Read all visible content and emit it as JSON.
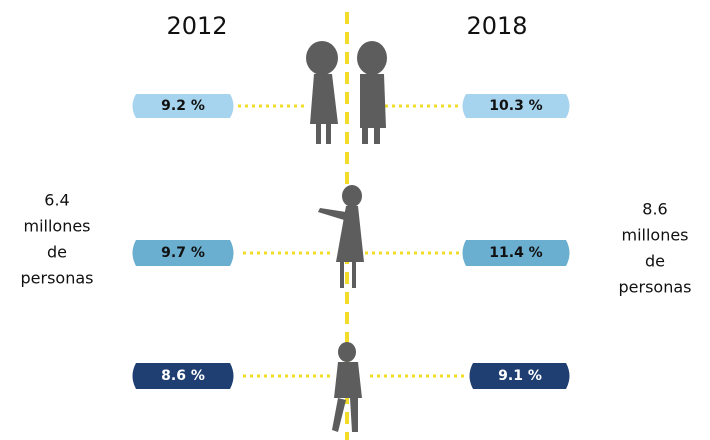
{
  "header": {
    "left_year": "2012",
    "right_year": "2018"
  },
  "rows": [
    {
      "left": "9.2 %",
      "right": "10.3 %"
    },
    {
      "left": "9.7 %",
      "right": "11.4 %"
    },
    {
      "left": "8.6 %",
      "right": "9.1 %"
    }
  ],
  "left_total": [
    "6.4",
    "millones",
    "de",
    "personas"
  ],
  "right_total": [
    "8.6",
    "millones",
    "de",
    "personas"
  ]
}
